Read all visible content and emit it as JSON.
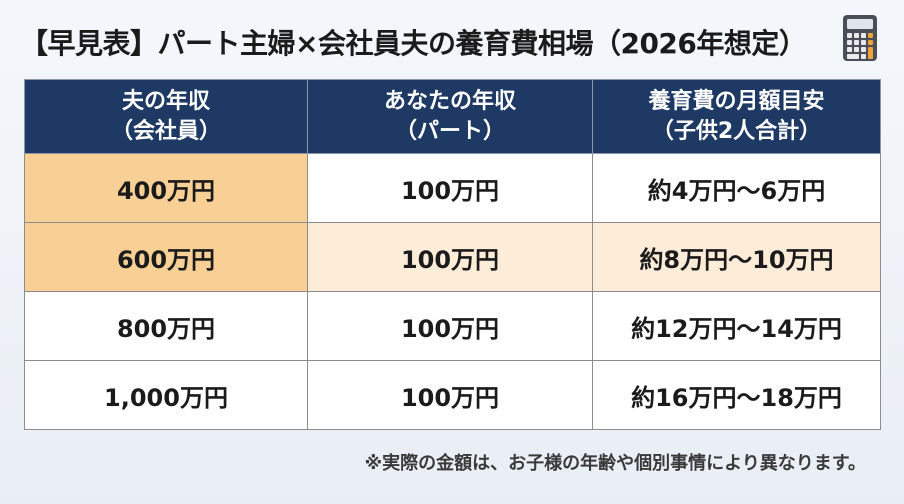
{
  "title": "【早見表】パート主婦×会社員夫の養育費相場（2026年想定）",
  "icons": {
    "title_icon": "calculator-icon"
  },
  "colors": {
    "header_bg": "#1e3a64",
    "highlight_strong": "#f8cf94",
    "highlight_light": "#fdecd8"
  },
  "table": {
    "headers": [
      {
        "line1": "夫の年収",
        "line2": "（会社員）"
      },
      {
        "line1": "あなたの年収",
        "line2": "（パート）"
      },
      {
        "line1": "養育費の月額目安",
        "line2": "（子供2人合計）"
      }
    ],
    "rows": [
      {
        "husband_income": "400万円",
        "your_income": "100万円",
        "child_support": "約4万円〜6万円"
      },
      {
        "husband_income": "600万円",
        "your_income": "100万円",
        "child_support": "約8万円〜10万円"
      },
      {
        "husband_income": "800万円",
        "your_income": "100万円",
        "child_support": "約12万円〜14万円"
      },
      {
        "husband_income": "1,000万円",
        "your_income": "100万円",
        "child_support": "約16万円〜18万円"
      }
    ]
  },
  "note": "※実際の金額は、お子様の年齢や個別事情により異なります。"
}
